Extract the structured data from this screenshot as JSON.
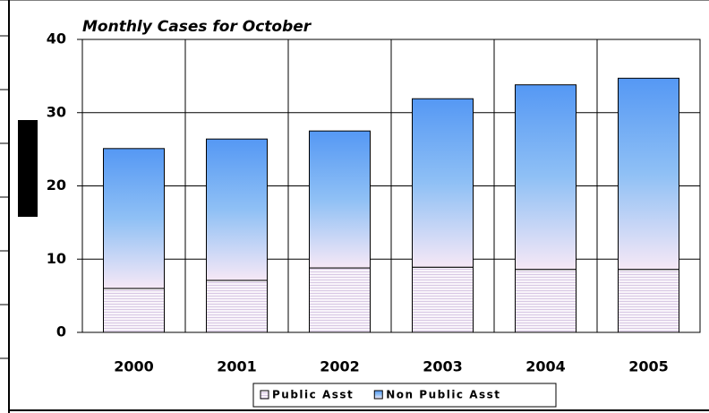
{
  "chart_data": {
    "type": "stacked_bar",
    "title": "Monthly Cases for October",
    "categories": [
      "2000",
      "2001",
      "2002",
      "2003",
      "2004",
      "2005"
    ],
    "series": [
      {
        "name": "Public Asst",
        "color": "#e8ddf0",
        "values": [
          6,
          7.1,
          8.8,
          8.9,
          8.6,
          8.6
        ]
      },
      {
        "name": "Non Public Asst",
        "color": "#5a9cf5",
        "values": [
          19.1,
          19.3,
          18.7,
          23,
          25.2,
          26.1
        ]
      }
    ],
    "ylim": [
      0,
      40
    ],
    "yticks": [
      0,
      10,
      20,
      30,
      40
    ],
    "grid": true,
    "legend": "bottom"
  }
}
